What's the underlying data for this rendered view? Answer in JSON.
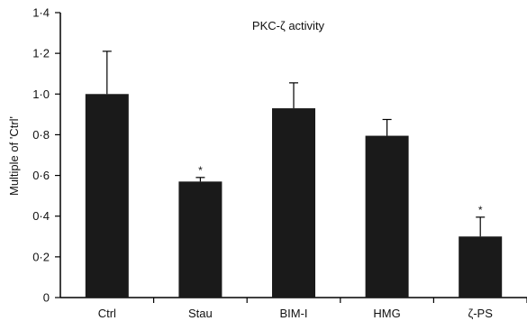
{
  "chart_data": {
    "type": "bar",
    "title": "PKC-ζ activity",
    "ylabel": "Multiple of 'Ctrl'",
    "xlabel": "",
    "categories": [
      "Ctrl",
      "Stau",
      "BIM-I",
      "HMG",
      "ζ-PS"
    ],
    "values": [
      1.0,
      0.57,
      0.93,
      0.795,
      0.3
    ],
    "errors": [
      0.21,
      0.02,
      0.125,
      0.08,
      0.095
    ],
    "significance": [
      "",
      "*",
      "",
      "",
      "*"
    ],
    "ylim": [
      0,
      1.4
    ],
    "yticks": [
      0,
      0.2,
      0.4,
      0.6,
      0.8,
      1.0,
      1.2,
      1.4
    ],
    "ytick_labels": [
      "0",
      "0·2",
      "0·4",
      "0·6",
      "0·8",
      "1·0",
      "1·2",
      "1·4"
    ],
    "grid": false,
    "bar_color": "#1a1a1a",
    "axis_color": "#000000"
  }
}
